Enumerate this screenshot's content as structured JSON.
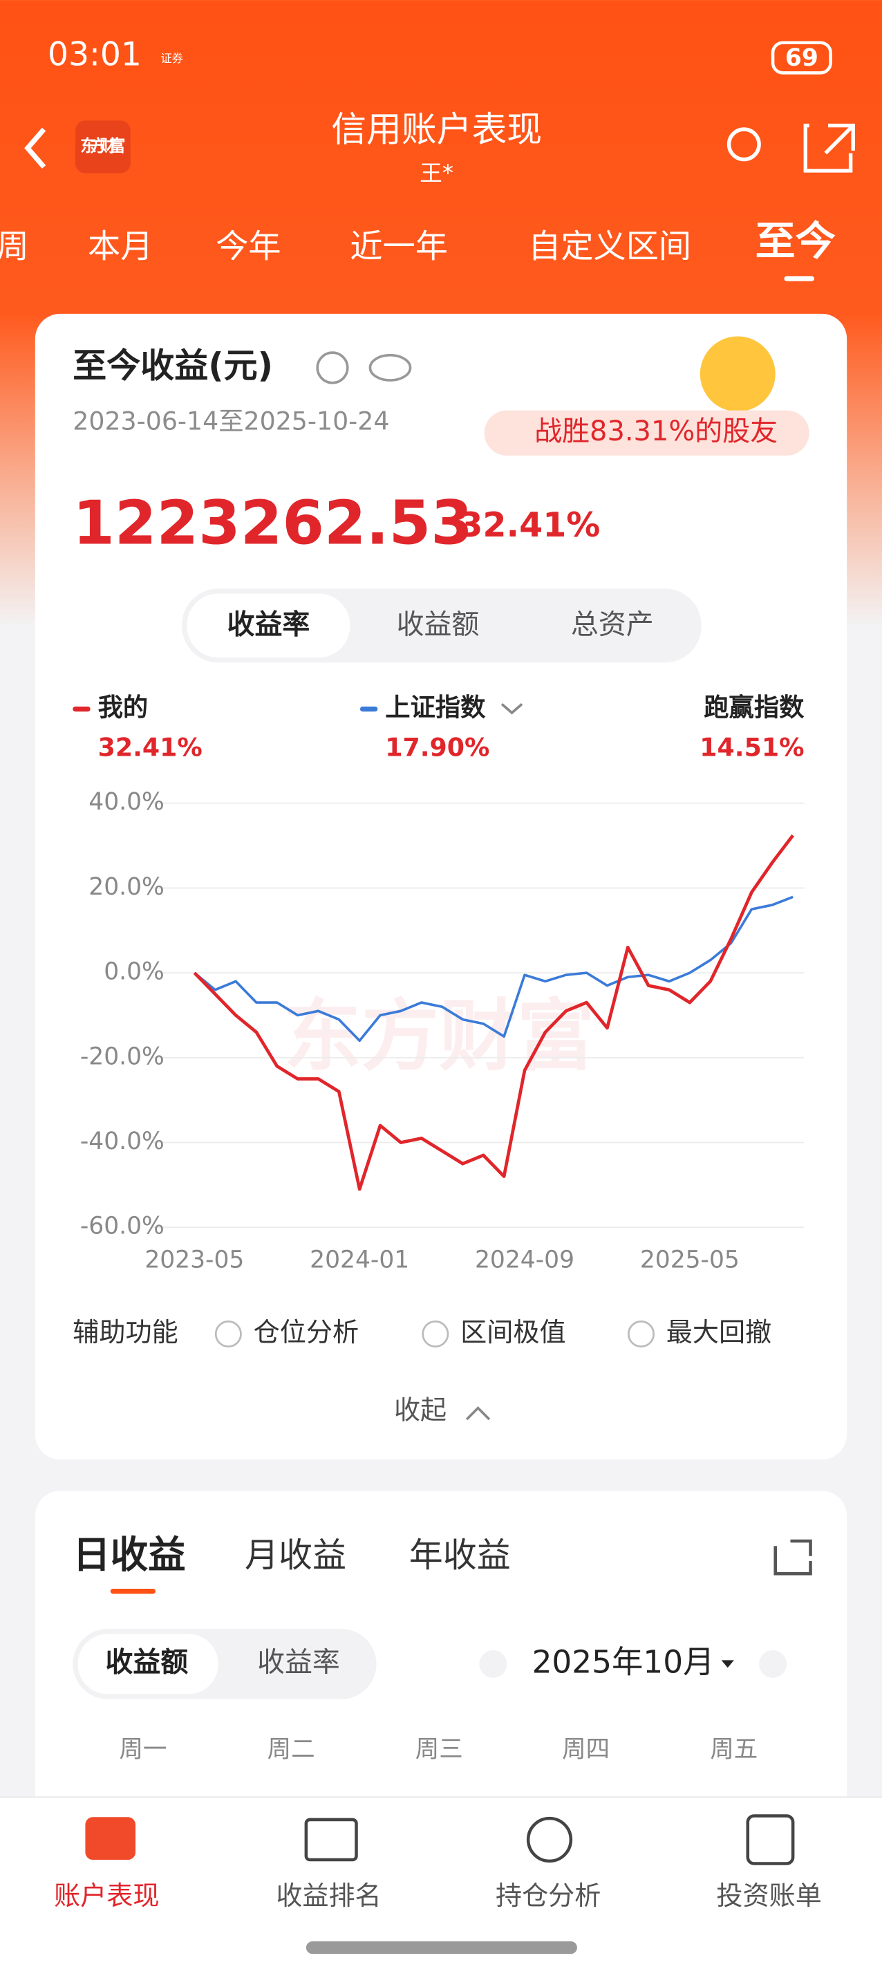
{
  "status_bar": {
    "time": "03:01",
    "app_badge": "证券",
    "battery": "69"
  },
  "nav": {
    "logo": "东方财富",
    "title": "信用账户表现",
    "subtitle": "王*"
  },
  "period_tabs": [
    "周",
    "本月",
    "今年",
    "近一年",
    "自定义区间",
    "至今"
  ],
  "summary": {
    "title": "至今收益(元)",
    "date_range": "2023-06-14至2025-10-24",
    "badge": "战胜83.31%的股友",
    "amount": "1223262.53",
    "rate": "32.41%"
  },
  "chart_toggle": [
    "收益率",
    "收益额",
    "总资产"
  ],
  "chart_data": {
    "type": "line",
    "watermark": "东方财富",
    "categories": [
      "2023-05",
      null,
      null,
      null,
      null,
      null,
      null,
      null,
      "2024-01",
      null,
      null,
      null,
      null,
      null,
      null,
      null,
      "2024-09",
      null,
      null,
      null,
      null,
      null,
      null,
      null,
      "2025-05",
      null,
      null,
      null,
      null,
      null
    ],
    "series": [
      {
        "name": "我的",
        "color": "#e0262b",
        "values": [
          0,
          -5,
          -10,
          -14,
          -22,
          -25,
          -25,
          -28,
          -51,
          -36,
          -40,
          -39,
          -42,
          -45,
          -43,
          -48,
          -23,
          -14,
          -9,
          -7,
          -13,
          6,
          -3,
          -4,
          -7,
          -2,
          8,
          19,
          26,
          32.41
        ]
      },
      {
        "name": "上证指数",
        "color": "#3b7bd8",
        "values": [
          0,
          -4,
          -2,
          -7,
          -7,
          -10,
          -9,
          -11,
          -16,
          -10,
          -9,
          -7,
          -8,
          -11,
          -12,
          -15,
          -0.5,
          -2,
          -0.5,
          0,
          -3,
          -1,
          -0.5,
          -2,
          0,
          3,
          7,
          15,
          16,
          17.9
        ]
      }
    ],
    "legend_values": [
      "32.41%",
      "17.90%"
    ],
    "outperform": {
      "label": "跑赢指数",
      "value": "14.51%"
    },
    "ylim": [
      -60,
      40
    ],
    "yticks": [
      {
        "value": -60,
        "label": "-60.0%"
      },
      {
        "value": -40,
        "label": "-40.0%"
      },
      {
        "value": -20,
        "label": "-20.0%"
      },
      {
        "value": 0,
        "label": "0.0%"
      },
      {
        "value": 20,
        "label": "20.0%"
      },
      {
        "value": 40,
        "label": "40.0%"
      }
    ],
    "grid": true
  },
  "tools": {
    "label": "辅助功能",
    "options": [
      "仓位分析",
      "区间极值",
      "最大回撤"
    ]
  },
  "collapse": "收起",
  "daily": {
    "tabs": [
      "日收益",
      "月收益",
      "年收益"
    ],
    "toggle": [
      "收益额",
      "收益率"
    ],
    "month": "2025年10月",
    "weekdays": [
      "周一",
      "周二",
      "周三",
      "周四",
      "周五"
    ]
  },
  "bottom_nav": [
    "账户表现",
    "收益排名",
    "持仓分析",
    "投资账单"
  ]
}
